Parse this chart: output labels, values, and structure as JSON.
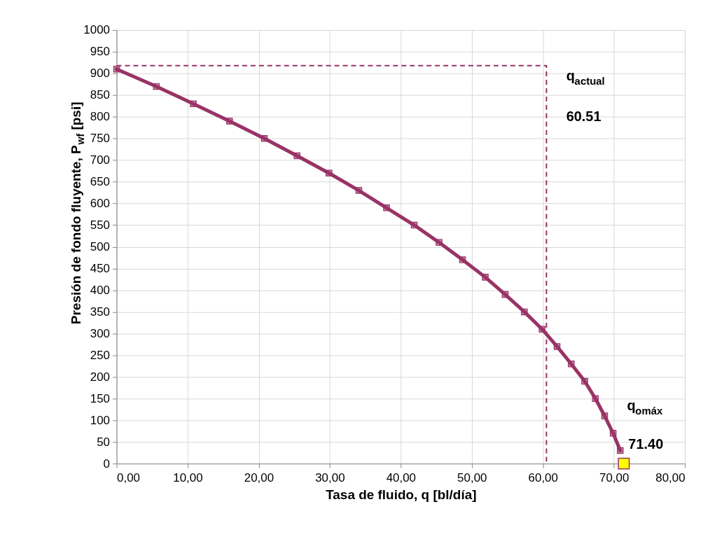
{
  "chart_data": {
    "type": "line",
    "xlabel": "Tasa de fluido, q [bl/día]",
    "ylabel": "Presión de fondo fluyente, P$_{wf}$  [psi]",
    "xlim": [
      0,
      80
    ],
    "xticks": [
      {
        "value": 0,
        "label": "0,00"
      },
      {
        "value": 10,
        "label": "10,00"
      },
      {
        "value": 20,
        "label": "20,00"
      },
      {
        "value": 30,
        "label": "30,00"
      },
      {
        "value": 40,
        "label": "40,00"
      },
      {
        "value": 50,
        "label": "50,00"
      },
      {
        "value": 60,
        "label": "60,00"
      },
      {
        "value": 70,
        "label": "70,00"
      },
      {
        "value": 80,
        "label": "80,00"
      }
    ],
    "ylim": [
      0,
      1000
    ],
    "yticks": [
      0,
      50,
      100,
      150,
      200,
      250,
      300,
      350,
      400,
      450,
      500,
      550,
      600,
      650,
      700,
      750,
      800,
      850,
      900,
      950,
      1000
    ],
    "grid": true,
    "series": [
      {
        "color": "#993366",
        "marker": "square",
        "line_style": "solid",
        "x": [
          0,
          5.6,
          10.8,
          15.9,
          20.8,
          25.4,
          29.9,
          34.1,
          38.0,
          41.9,
          45.4,
          48.7,
          51.9,
          54.7,
          57.4,
          59.9,
          62.0,
          64.0,
          65.9,
          67.4,
          68.7,
          69.9,
          70.9
        ],
        "values": [
          910,
          870,
          830,
          790,
          750,
          710,
          670,
          630,
          590,
          550,
          510,
          470,
          430,
          390,
          350,
          310,
          270,
          230,
          190,
          150,
          110,
          70,
          30
        ]
      },
      {
        "type": "line",
        "color": "#993366",
        "marker": "none",
        "line_style": "dashed",
        "x": [
          0,
          60.51,
          60.51
        ],
        "values": [
          918,
          918,
          0
        ]
      },
      {
        "type": "scatter",
        "color": "#ffff00",
        "marker": "square",
        "x": [
          71.4
        ],
        "values": [
          0
        ]
      }
    ],
    "annotations": [
      "q$_{actual}$",
      "60.51",
      "q$_{omáx}$",
      "71.40"
    ]
  }
}
